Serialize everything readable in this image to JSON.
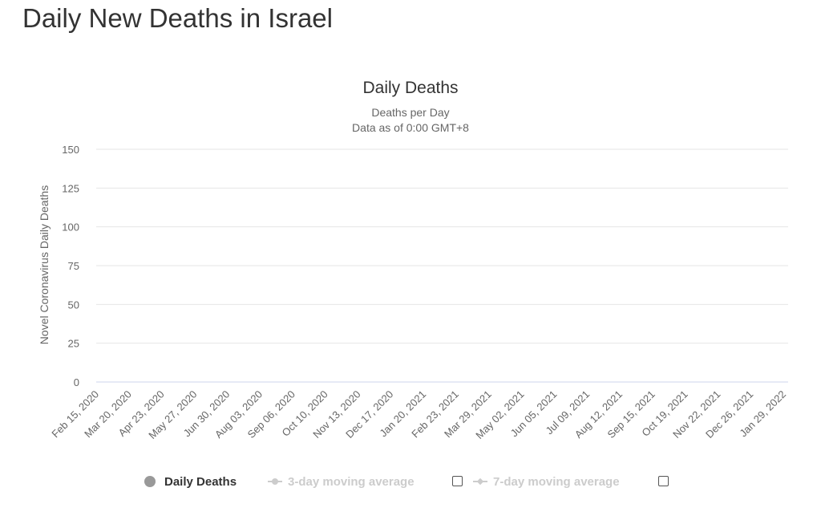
{
  "page": {
    "title": "Daily New Deaths in Israel"
  },
  "chart_data": {
    "type": "bar",
    "title": "Daily Deaths",
    "subtitle": [
      "Deaths per Day",
      "Data as of 0:00 GMT+8"
    ],
    "ylabel": "Novel Coronavirus Daily Deaths",
    "xlabel": "",
    "ylim": [
      0,
      150
    ],
    "yticks": [
      0,
      25,
      50,
      75,
      100,
      125,
      150
    ],
    "grid": true,
    "xticks": [
      "Feb 15, 2020",
      "Mar 20, 2020",
      "Apr 23, 2020",
      "May 27, 2020",
      "Jun 30, 2020",
      "Aug 03, 2020",
      "Sep 06, 2020",
      "Oct 10, 2020",
      "Nov 13, 2020",
      "Dec 17, 2020",
      "Jan 20, 2021",
      "Feb 23, 2021",
      "Mar 29, 2021",
      "May 02, 2021",
      "Jun 05, 2021",
      "Jul 09, 2021",
      "Aug 12, 2021",
      "Sep 15, 2021",
      "Oct 19, 2021",
      "Nov 22, 2021",
      "Dec 26, 2021",
      "Jan 29, 2022"
    ],
    "x_start": "Feb 15, 2020",
    "x_end": "Feb 02, 2022",
    "series": [
      {
        "name": "Daily Deaths",
        "color": "#9e9e9e",
        "values": [
          0,
          0,
          0,
          0,
          0,
          0,
          0,
          0,
          0,
          0,
          0,
          0,
          0,
          0,
          0,
          0,
          0,
          0,
          0,
          0,
          0,
          0,
          0,
          0,
          0,
          0,
          0,
          0,
          0,
          0,
          0,
          0,
          0,
          0,
          0,
          0,
          0,
          0,
          0,
          0,
          0,
          0,
          0,
          0,
          0,
          0,
          0,
          0,
          0,
          0,
          0,
          0,
          0,
          0,
          0,
          0,
          0,
          0,
          0,
          0,
          0,
          0,
          0,
          0,
          0,
          0,
          0,
          0,
          0,
          0,
          0,
          0,
          0,
          0,
          0,
          0,
          0,
          0,
          0,
          0,
          0,
          0,
          0,
          0,
          0,
          0,
          0,
          0,
          0,
          0,
          0,
          0,
          0,
          0,
          0,
          0,
          0,
          0,
          0,
          0,
          0,
          0,
          0,
          0,
          0,
          0,
          0,
          0,
          0,
          0,
          0,
          0,
          0,
          0,
          0,
          0,
          0,
          0,
          0,
          0,
          0,
          0,
          0,
          0,
          0,
          0,
          0,
          0,
          0,
          0,
          0,
          0,
          0,
          0,
          0,
          0,
          0,
          0,
          0,
          0,
          0,
          0,
          0,
          0,
          0,
          0,
          0,
          0,
          0,
          0,
          0,
          0,
          0,
          0,
          0,
          0,
          0,
          0,
          0,
          0,
          0,
          0,
          0,
          0,
          0,
          0,
          0,
          0,
          0,
          0,
          0,
          0,
          0,
          0,
          0,
          0,
          0,
          0,
          0,
          0,
          0,
          0,
          0,
          0,
          0,
          0,
          0,
          0,
          0,
          0,
          0,
          0,
          0,
          0,
          0,
          0,
          0,
          0,
          0,
          0,
          0,
          0,
          0,
          0,
          0,
          0,
          0,
          0,
          0,
          0,
          0,
          0,
          0,
          0,
          0,
          0,
          0,
          0,
          0,
          0,
          0,
          0,
          0,
          0,
          0,
          0,
          0,
          0,
          0,
          0,
          0,
          0,
          0,
          0,
          0,
          0,
          0,
          0,
          0,
          0,
          0,
          0,
          0,
          0,
          0,
          0,
          0,
          0,
          0,
          0,
          0,
          0,
          0,
          0,
          0,
          0,
          0,
          0,
          0,
          0,
          0,
          0,
          0,
          0,
          0,
          0,
          0,
          0,
          0,
          0,
          0,
          0,
          0,
          0,
          0,
          0,
          0,
          0,
          0,
          0,
          0,
          0,
          0,
          0,
          0,
          0,
          0,
          0,
          0,
          0,
          0,
          0,
          0,
          0,
          0,
          0,
          0,
          0,
          0,
          0,
          0,
          0,
          0,
          0,
          0,
          0,
          0,
          0,
          0,
          0,
          0,
          0,
          0,
          0,
          0,
          0,
          0,
          0,
          0,
          0,
          0,
          0,
          0,
          0,
          0,
          0,
          0,
          0,
          0,
          0,
          0,
          0,
          0,
          0,
          0,
          0,
          0,
          0,
          0,
          0,
          0,
          0,
          0,
          0,
          0,
          0,
          0,
          0,
          0,
          0,
          0,
          0,
          0,
          0,
          0,
          0,
          0,
          0,
          0,
          0,
          0,
          0,
          0,
          0,
          0,
          0,
          0,
          0,
          0,
          0,
          0,
          0,
          0,
          0,
          0,
          0,
          0,
          0,
          0,
          0,
          0,
          0,
          0,
          0,
          0,
          0,
          0,
          0,
          0,
          0,
          0,
          0,
          0,
          0,
          0,
          0,
          0,
          0,
          0,
          0,
          0,
          0,
          0,
          0,
          0,
          0,
          0,
          0,
          0,
          0,
          0,
          0,
          0,
          0,
          0,
          0,
          0,
          0,
          0,
          0,
          0,
          0,
          0,
          0,
          0,
          0,
          0,
          0,
          0,
          0,
          0,
          0,
          0,
          0,
          0,
          0,
          0,
          0,
          0,
          0,
          0,
          0,
          0,
          0,
          0,
          0,
          0,
          0,
          0,
          0,
          0,
          0,
          0,
          0,
          0,
          0,
          0,
          0,
          0,
          0,
          0,
          0,
          0,
          0,
          0,
          0,
          0,
          0,
          0,
          0,
          0,
          0,
          0,
          0,
          0,
          0,
          0,
          0,
          0,
          0,
          0,
          0,
          0,
          0,
          0,
          0,
          0,
          0,
          0,
          0,
          0,
          0,
          0,
          0,
          0,
          0,
          0,
          0,
          0,
          0,
          0,
          0,
          0,
          0,
          0,
          0,
          0,
          0,
          0,
          0,
          0,
          0,
          0,
          0,
          0,
          0,
          0,
          0,
          0,
          0,
          0,
          0,
          0,
          0,
          0,
          0,
          0,
          0,
          0,
          0,
          0,
          0,
          0,
          0,
          0,
          0,
          0,
          0,
          0,
          0,
          0,
          0,
          0,
          0,
          0,
          0,
          0,
          0,
          0,
          0,
          0,
          0,
          0,
          0,
          0,
          0,
          0,
          0,
          0,
          0,
          0,
          0,
          0,
          0,
          0,
          0,
          0,
          0,
          0,
          0,
          0,
          0,
          0,
          0,
          0,
          0,
          0,
          0,
          0,
          0,
          0,
          0,
          0,
          0,
          0,
          0,
          0,
          0,
          0,
          0,
          0,
          0,
          0,
          0,
          0,
          0,
          0,
          0,
          0,
          0,
          0,
          0,
          0,
          0,
          0,
          0,
          0,
          0,
          0,
          0,
          0,
          0,
          0,
          0,
          0,
          0,
          0,
          0,
          0,
          0,
          0,
          0,
          0,
          0,
          0,
          0,
          0,
          0,
          0,
          0,
          0,
          0,
          0,
          0,
          0,
          0,
          0,
          0,
          0,
          0,
          0,
          0,
          0,
          0,
          0,
          0,
          0,
          0,
          0,
          0,
          0,
          0,
          0,
          0,
          0,
          0,
          0,
          0,
          0,
          0,
          0,
          0,
          0,
          0,
          0,
          0,
          0,
          0,
          0,
          0,
          0,
          0,
          0,
          0,
          0,
          0,
          0,
          0,
          0,
          0,
          0,
          0,
          0,
          0,
          0,
          0,
          0,
          0,
          0,
          0,
          0,
          0,
          0,
          0,
          0,
          0,
          0,
          0,
          0,
          0,
          0,
          0,
          0,
          0,
          0,
          0,
          0,
          0,
          0,
          0,
          0,
          0,
          0,
          0,
          0,
          0,
          0,
          0,
          0,
          0,
          0,
          0,
          0,
          0,
          0,
          0,
          0,
          0,
          0,
          0,
          0,
          0,
          0,
          0,
          0,
          0,
          0,
          0,
          0,
          0,
          0,
          0,
          0,
          0,
          0,
          0,
          0,
          0,
          0,
          0,
          0,
          0,
          0,
          0,
          0,
          0,
          0,
          0,
          0,
          0,
          0,
          0,
          0,
          0,
          0,
          0,
          0,
          0,
          0,
          0,
          0,
          0,
          0,
          0,
          0,
          0,
          0,
          0,
          0
        ]
      }
    ],
    "legend": {
      "position": "bottom",
      "items": [
        {
          "label": "Daily Deaths",
          "active": true
        },
        {
          "label": "3-day moving average",
          "active": false
        },
        {
          "label": "7-day moving average",
          "active": false
        }
      ]
    }
  }
}
